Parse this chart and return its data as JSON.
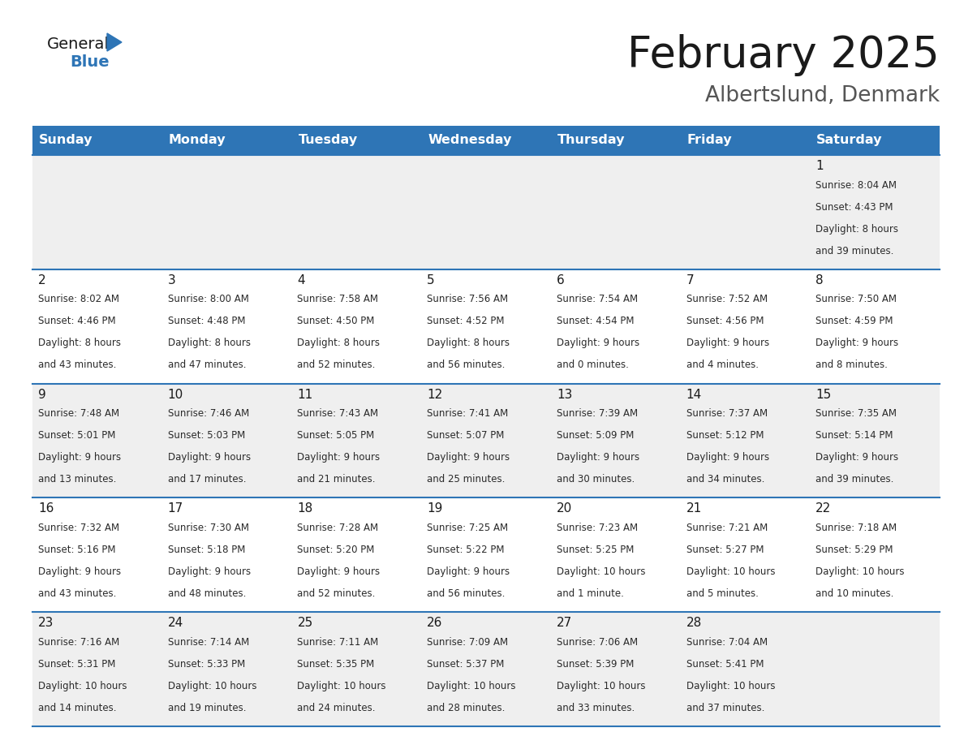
{
  "title": "February 2025",
  "subtitle": "Albertslund, Denmark",
  "header_bg_color": "#2E75B6",
  "header_text_color": "#FFFFFF",
  "row_bg_even": "#EFEFEF",
  "row_bg_odd": "#FFFFFF",
  "cell_border_color": "#2E75B6",
  "day_headers": [
    "Sunday",
    "Monday",
    "Tuesday",
    "Wednesday",
    "Thursday",
    "Friday",
    "Saturday"
  ],
  "days": [
    {
      "day": 1,
      "col": 6,
      "row": 0,
      "sunrise": "8:04 AM",
      "sunset": "4:43 PM",
      "daylight_hours": "8 hours",
      "daylight_mins": "and 39 minutes."
    },
    {
      "day": 2,
      "col": 0,
      "row": 1,
      "sunrise": "8:02 AM",
      "sunset": "4:46 PM",
      "daylight_hours": "8 hours",
      "daylight_mins": "and 43 minutes."
    },
    {
      "day": 3,
      "col": 1,
      "row": 1,
      "sunrise": "8:00 AM",
      "sunset": "4:48 PM",
      "daylight_hours": "8 hours",
      "daylight_mins": "and 47 minutes."
    },
    {
      "day": 4,
      "col": 2,
      "row": 1,
      "sunrise": "7:58 AM",
      "sunset": "4:50 PM",
      "daylight_hours": "8 hours",
      "daylight_mins": "and 52 minutes."
    },
    {
      "day": 5,
      "col": 3,
      "row": 1,
      "sunrise": "7:56 AM",
      "sunset": "4:52 PM",
      "daylight_hours": "8 hours",
      "daylight_mins": "and 56 minutes."
    },
    {
      "day": 6,
      "col": 4,
      "row": 1,
      "sunrise": "7:54 AM",
      "sunset": "4:54 PM",
      "daylight_hours": "9 hours",
      "daylight_mins": "and 0 minutes."
    },
    {
      "day": 7,
      "col": 5,
      "row": 1,
      "sunrise": "7:52 AM",
      "sunset": "4:56 PM",
      "daylight_hours": "9 hours",
      "daylight_mins": "and 4 minutes."
    },
    {
      "day": 8,
      "col": 6,
      "row": 1,
      "sunrise": "7:50 AM",
      "sunset": "4:59 PM",
      "daylight_hours": "9 hours",
      "daylight_mins": "and 8 minutes."
    },
    {
      "day": 9,
      "col": 0,
      "row": 2,
      "sunrise": "7:48 AM",
      "sunset": "5:01 PM",
      "daylight_hours": "9 hours",
      "daylight_mins": "and 13 minutes."
    },
    {
      "day": 10,
      "col": 1,
      "row": 2,
      "sunrise": "7:46 AM",
      "sunset": "5:03 PM",
      "daylight_hours": "9 hours",
      "daylight_mins": "and 17 minutes."
    },
    {
      "day": 11,
      "col": 2,
      "row": 2,
      "sunrise": "7:43 AM",
      "sunset": "5:05 PM",
      "daylight_hours": "9 hours",
      "daylight_mins": "and 21 minutes."
    },
    {
      "day": 12,
      "col": 3,
      "row": 2,
      "sunrise": "7:41 AM",
      "sunset": "5:07 PM",
      "daylight_hours": "9 hours",
      "daylight_mins": "and 25 minutes."
    },
    {
      "day": 13,
      "col": 4,
      "row": 2,
      "sunrise": "7:39 AM",
      "sunset": "5:09 PM",
      "daylight_hours": "9 hours",
      "daylight_mins": "and 30 minutes."
    },
    {
      "day": 14,
      "col": 5,
      "row": 2,
      "sunrise": "7:37 AM",
      "sunset": "5:12 PM",
      "daylight_hours": "9 hours",
      "daylight_mins": "and 34 minutes."
    },
    {
      "day": 15,
      "col": 6,
      "row": 2,
      "sunrise": "7:35 AM",
      "sunset": "5:14 PM",
      "daylight_hours": "9 hours",
      "daylight_mins": "and 39 minutes."
    },
    {
      "day": 16,
      "col": 0,
      "row": 3,
      "sunrise": "7:32 AM",
      "sunset": "5:16 PM",
      "daylight_hours": "9 hours",
      "daylight_mins": "and 43 minutes."
    },
    {
      "day": 17,
      "col": 1,
      "row": 3,
      "sunrise": "7:30 AM",
      "sunset": "5:18 PM",
      "daylight_hours": "9 hours",
      "daylight_mins": "and 48 minutes."
    },
    {
      "day": 18,
      "col": 2,
      "row": 3,
      "sunrise": "7:28 AM",
      "sunset": "5:20 PM",
      "daylight_hours": "9 hours",
      "daylight_mins": "and 52 minutes."
    },
    {
      "day": 19,
      "col": 3,
      "row": 3,
      "sunrise": "7:25 AM",
      "sunset": "5:22 PM",
      "daylight_hours": "9 hours",
      "daylight_mins": "and 56 minutes."
    },
    {
      "day": 20,
      "col": 4,
      "row": 3,
      "sunrise": "7:23 AM",
      "sunset": "5:25 PM",
      "daylight_hours": "10 hours",
      "daylight_mins": "and 1 minute."
    },
    {
      "day": 21,
      "col": 5,
      "row": 3,
      "sunrise": "7:21 AM",
      "sunset": "5:27 PM",
      "daylight_hours": "10 hours",
      "daylight_mins": "and 5 minutes."
    },
    {
      "day": 22,
      "col": 6,
      "row": 3,
      "sunrise": "7:18 AM",
      "sunset": "5:29 PM",
      "daylight_hours": "10 hours",
      "daylight_mins": "and 10 minutes."
    },
    {
      "day": 23,
      "col": 0,
      "row": 4,
      "sunrise": "7:16 AM",
      "sunset": "5:31 PM",
      "daylight_hours": "10 hours",
      "daylight_mins": "and 14 minutes."
    },
    {
      "day": 24,
      "col": 1,
      "row": 4,
      "sunrise": "7:14 AM",
      "sunset": "5:33 PM",
      "daylight_hours": "10 hours",
      "daylight_mins": "and 19 minutes."
    },
    {
      "day": 25,
      "col": 2,
      "row": 4,
      "sunrise": "7:11 AM",
      "sunset": "5:35 PM",
      "daylight_hours": "10 hours",
      "daylight_mins": "and 24 minutes."
    },
    {
      "day": 26,
      "col": 3,
      "row": 4,
      "sunrise": "7:09 AM",
      "sunset": "5:37 PM",
      "daylight_hours": "10 hours",
      "daylight_mins": "and 28 minutes."
    },
    {
      "day": 27,
      "col": 4,
      "row": 4,
      "sunrise": "7:06 AM",
      "sunset": "5:39 PM",
      "daylight_hours": "10 hours",
      "daylight_mins": "and 33 minutes."
    },
    {
      "day": 28,
      "col": 5,
      "row": 4,
      "sunrise": "7:04 AM",
      "sunset": "5:41 PM",
      "daylight_hours": "10 hours",
      "daylight_mins": "and 37 minutes."
    }
  ],
  "num_rows": 5,
  "num_cols": 7,
  "title_fontsize": 38,
  "subtitle_fontsize": 19,
  "header_fontsize": 11.5,
  "day_num_fontsize": 11,
  "info_fontsize": 8.5
}
